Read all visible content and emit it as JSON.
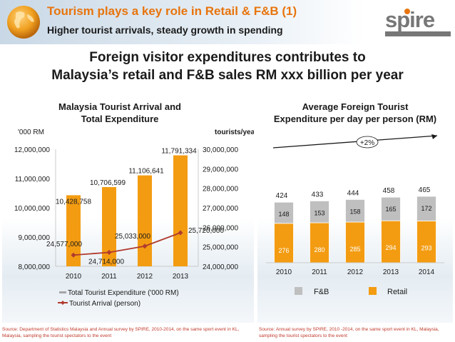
{
  "header": {
    "title": "Tourism plays a key role in Retail & F&B (1)",
    "subtitle": "Higher tourist arrivals, steady growth in spending",
    "logo": "spire"
  },
  "headline": {
    "line1": "Foreign visitor expenditures contributes to",
    "line2": "Malaysia’s retail and F&B sales RM xxx billion per year"
  },
  "colors": {
    "accent": "#e8740c",
    "bar_orange": "#f39c12",
    "bar_grey": "#bfbfbf",
    "line": "#b03a2e"
  },
  "chart_data": [
    {
      "type": "bar",
      "title_line1": "Malaysia Tourist Arrival and",
      "title_line2": "Total Expenditure",
      "y_left_unit": "'000 RM",
      "y_right_unit": "tourists/year",
      "categories": [
        "2010",
        "2011",
        "2012",
        "2013"
      ],
      "ylim_left": [
        8000000,
        12000000
      ],
      "ylim_right": [
        24000000,
        30000000
      ],
      "y_left_ticks": [
        "12,000,000",
        "11,000,000",
        "10,000,000",
        "9,000,000",
        "8,000,000"
      ],
      "y_right_ticks": [
        "30,000,000",
        "29,000,000",
        "28,000,000",
        "27,000,000",
        "26,000,000",
        "25,000,000",
        "24,000,000"
      ],
      "series": [
        {
          "name": "Total Tourist Expenditure ('000 RM)",
          "axis": "left",
          "kind": "bar",
          "values": [
            10428758,
            10706599,
            11106641,
            11791334
          ],
          "labels": [
            "10,428,758",
            "10,706,599",
            "11,106,641",
            "11,791,334"
          ]
        },
        {
          "name": "Tourist Arrival (person)",
          "axis": "right",
          "kind": "line",
          "values": [
            24577000,
            24714000,
            25033000,
            25720000
          ],
          "labels": [
            "24,577,000",
            "24,714,000",
            "25,033,000",
            "25,720,000"
          ]
        }
      ]
    },
    {
      "type": "bar",
      "stacked": true,
      "title_line1": "Average Foreign Tourist",
      "title_line2": "Expenditure per day per person (RM)",
      "categories": [
        "2010",
        "2011",
        "2012",
        "2013",
        "2014"
      ],
      "series": [
        {
          "name": "Retail",
          "values": [
            276,
            280,
            285,
            294,
            293
          ]
        },
        {
          "name": "F&B",
          "values": [
            148,
            153,
            158,
            165,
            172
          ]
        }
      ],
      "totals": [
        424,
        433,
        444,
        458,
        465
      ],
      "annotation": "+2%",
      "legend": [
        "F&B",
        "Retail"
      ]
    }
  ],
  "sources": {
    "left": "Source: Department of Statistics Malaysia and Annual survey by SPIRE, 2010-2014, on the same sport event in KL, Malaysia, sampling the tourist spectators to the event",
    "right": "Source: Annual survey by SPIRE, 2010 -2014, on the same sport event in KL, Malaysia, sampling the tourist spectators to the event"
  }
}
